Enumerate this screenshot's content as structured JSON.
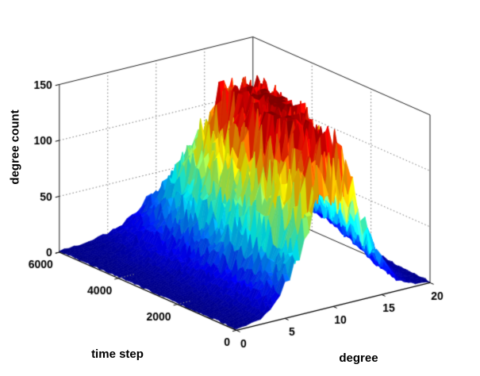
{
  "chart_data": {
    "type": "surface",
    "title": "",
    "xlabel": "degree",
    "ylabel": "time step",
    "zlabel": "degree count",
    "x_range": [
      0,
      20
    ],
    "y_range": [
      0,
      6000
    ],
    "z_range": [
      0,
      150
    ],
    "x_ticks": [
      0,
      5,
      10,
      15,
      20
    ],
    "y_ticks": [
      0,
      2000,
      4000,
      6000
    ],
    "z_ticks": [
      0,
      50,
      100,
      150
    ],
    "colormap": "jet",
    "grid": "dotted back walls",
    "surface": {
      "description": "Degree-count distribution over time: a jagged ridge peaked near degree 10-14, nearly zero for degree < 5 and degree > 17, highest (~150 counts) around time steps 2000-3500, lower (~45) near time step 6000, dark-blue flat plain elsewhere.",
      "time_keys": [
        0,
        500,
        1000,
        1500,
        2000,
        2500,
        3000,
        3500,
        4000,
        4500,
        5000,
        5500,
        6000
      ],
      "peak_count": [
        115,
        127,
        137,
        144,
        148,
        149,
        148,
        144,
        135,
        118,
        92,
        66,
        44
      ],
      "peak_degree": [
        10,
        10.3,
        10.6,
        11,
        11.3,
        11.6,
        12,
        12.3,
        12.6,
        13,
        13.3,
        13.6,
        14
      ],
      "degree_spread": [
        3.0,
        3.1,
        3.2,
        3.3,
        3.4,
        3.5,
        3.6,
        3.7,
        3.8,
        4.0,
        4.1,
        4.3,
        4.5
      ],
      "noise_fraction": 0.24,
      "wave_fraction": 0.07,
      "degree_step": 0.5,
      "time_step": 75
    }
  }
}
